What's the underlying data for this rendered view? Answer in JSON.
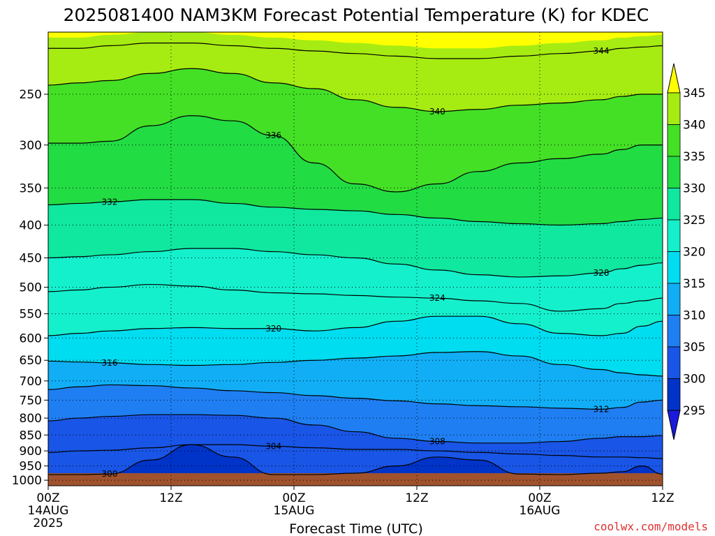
{
  "chart_data": {
    "type": "heatmap",
    "title": "2025081400 NAM3KM Forecast Potential Temperature (K) for KDEC",
    "xlabel": "Forecast Time (UTC)",
    "ylabel": "",
    "y_scale": "log-pressure",
    "ylim_hPa": [
      1000,
      200
    ],
    "xlim_hours": [
      0,
      60
    ],
    "y_ticks": [
      250,
      300,
      350,
      400,
      450,
      500,
      550,
      600,
      650,
      700,
      750,
      800,
      850,
      900,
      950,
      1000
    ],
    "x_ticks": [
      {
        "hours": 0,
        "label": "00Z",
        "date": "14AUG",
        "year": "2025"
      },
      {
        "hours": 12,
        "label": "12Z",
        "date": "",
        "year": ""
      },
      {
        "hours": 24,
        "label": "00Z",
        "date": "15AUG",
        "year": ""
      },
      {
        "hours": 36,
        "label": "12Z",
        "date": "",
        "year": ""
      },
      {
        "hours": 48,
        "label": "00Z",
        "date": "16AUG",
        "year": ""
      },
      {
        "hours": 60,
        "label": "12Z",
        "date": "",
        "year": ""
      }
    ],
    "colorbar": {
      "levels": [
        295,
        300,
        305,
        310,
        315,
        320,
        325,
        330,
        335,
        340,
        345
      ],
      "colors": [
        "#1a1adc",
        "#0033c8",
        "#1955e6",
        "#1f7ff2",
        "#11aef5",
        "#00dcf0",
        "#14f0cc",
        "#10e8a0",
        "#22dc44",
        "#44e026",
        "#a6ec12",
        "#ffff00"
      ],
      "extend": "both"
    },
    "ground_color": "#a0522d",
    "ground_below_hPa": 975,
    "series": [
      {
        "value": 300,
        "p": [
          980,
          980,
          978,
          930,
          880,
          920,
          980,
          980,
          975,
          950,
          920,
          930,
          978,
          980,
          975,
          970,
          950,
          978
        ]
      },
      {
        "value": 304,
        "p": [
          905,
          900,
          898,
          890,
          880,
          880,
          885,
          890,
          895,
          895,
          900,
          905,
          910,
          915,
          920,
          920,
          922,
          925
        ]
      },
      {
        "value": 308,
        "p": [
          808,
          800,
          795,
          790,
          790,
          792,
          800,
          820,
          840,
          860,
          870,
          875,
          875,
          870,
          860,
          855,
          855,
          852
        ]
      },
      {
        "value": 312,
        "p": [
          722,
          715,
          710,
          712,
          718,
          725,
          730,
          738,
          745,
          752,
          760,
          765,
          768,
          772,
          775,
          770,
          755,
          750
        ]
      },
      {
        "value": 316,
        "p": [
          652,
          654,
          656,
          660,
          662,
          660,
          655,
          650,
          645,
          640,
          632,
          630,
          640,
          660,
          672,
          680,
          685,
          688
        ]
      },
      {
        "value": 320,
        "p": [
          595,
          590,
          585,
          580,
          578,
          580,
          580,
          585,
          578,
          565,
          555,
          555,
          570,
          590,
          595,
          590,
          575,
          565
        ]
      },
      {
        "value": 324,
        "p": [
          508,
          505,
          500,
          495,
          498,
          505,
          510,
          512,
          515,
          518,
          520,
          525,
          530,
          545,
          540,
          530,
          525,
          520
        ]
      },
      {
        "value": 328,
        "p": [
          450,
          448,
          445,
          440,
          435,
          435,
          440,
          445,
          450,
          460,
          470,
          478,
          482,
          480,
          475,
          468,
          462,
          458
        ]
      },
      {
        "value": 332,
        "p": [
          372,
          370,
          368,
          365,
          365,
          370,
          375,
          378,
          380,
          385,
          390,
          395,
          398,
          400,
          398,
          395,
          392,
          390
        ]
      },
      {
        "value": 336,
        "p": [
          298,
          298,
          296,
          280,
          270,
          275,
          290,
          320,
          345,
          355,
          345,
          330,
          320,
          315,
          310,
          305,
          300,
          300
        ]
      },
      {
        "value": 340,
        "p": [
          242,
          240,
          238,
          232,
          228,
          232,
          240,
          245,
          255,
          262,
          266,
          264,
          260,
          258,
          255,
          252,
          250,
          250
        ]
      },
      {
        "value": 344,
        "p": [
          212,
          212,
          210,
          208,
          208,
          210,
          212,
          214,
          216,
          218,
          220,
          220,
          218,
          216,
          214,
          212,
          211,
          210
        ]
      }
    ],
    "series_hours": [
      0,
      3,
      6,
      10,
      14,
      18,
      22,
      26,
      30,
      34,
      38,
      42,
      46,
      50,
      54,
      56,
      58,
      60
    ]
  },
  "credit": "coolwx.com/models"
}
